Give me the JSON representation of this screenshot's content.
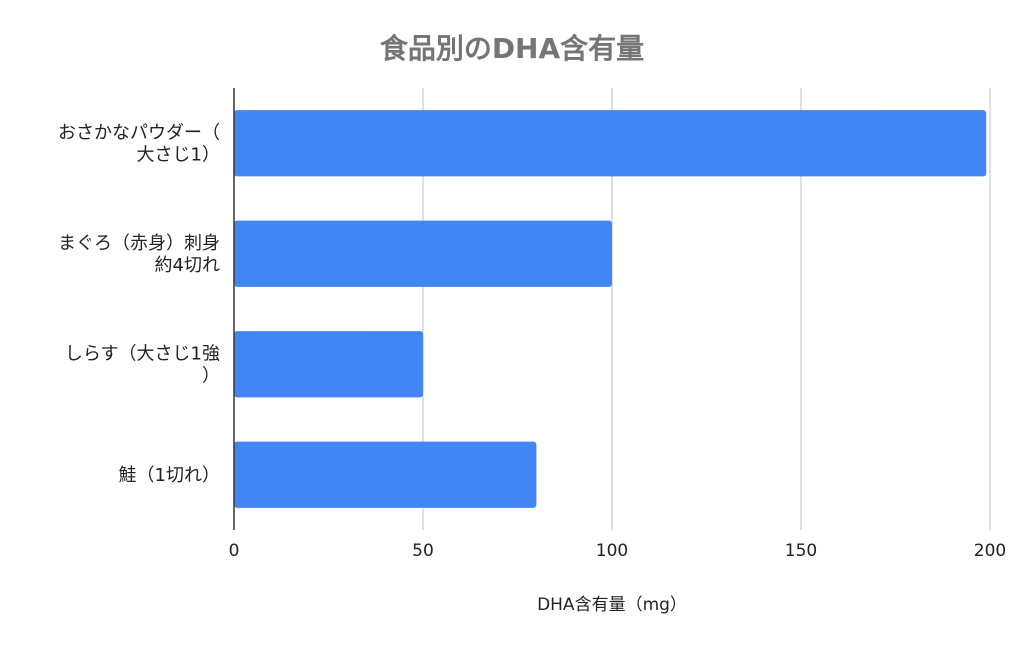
{
  "chart_data": {
    "type": "bar",
    "orientation": "horizontal",
    "title": "食品別のDHA含有量",
    "xlabel": "DHA含有量（mg）",
    "ylabel": "",
    "categories": [
      [
        "おさかなパウダー（",
        "大さじ1）"
      ],
      [
        "まぐろ（赤身）刺身",
        "約4切れ"
      ],
      [
        "しらす（大さじ1強",
        "）"
      ],
      [
        "鮭（1切れ）"
      ]
    ],
    "values": [
      199,
      100,
      50,
      80
    ],
    "xlim": [
      0,
      200
    ],
    "ticks": [
      "0",
      "50",
      "100",
      "150",
      "200"
    ],
    "grid": true,
    "bar_color": "#4285f4",
    "legend": "none"
  }
}
